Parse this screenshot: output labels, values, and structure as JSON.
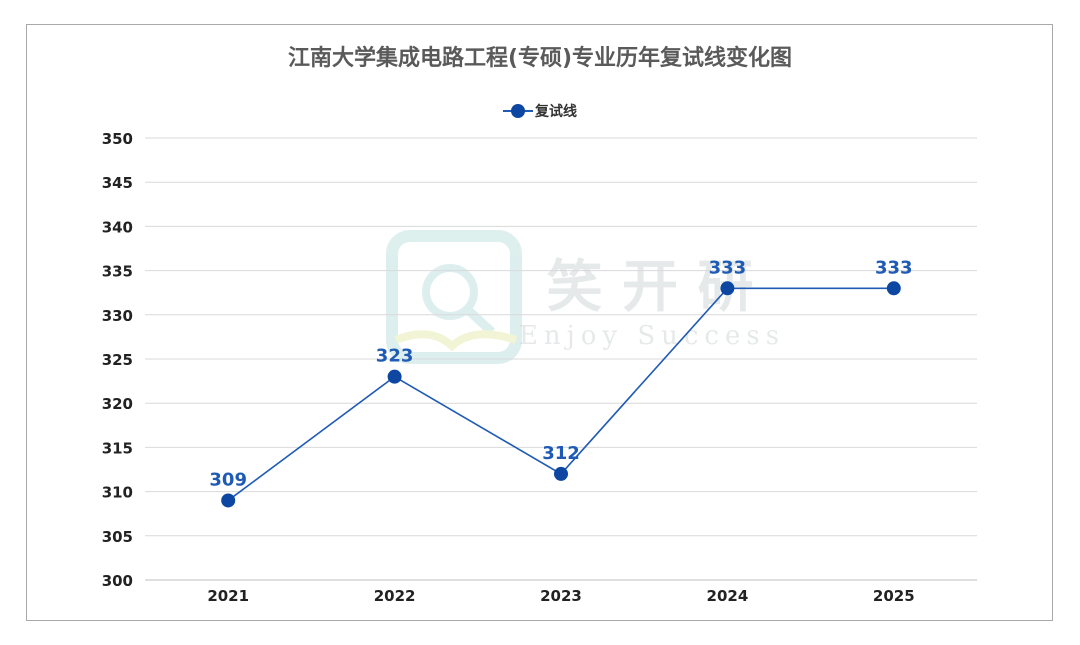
{
  "chart_data": {
    "type": "line",
    "title": "江南大学集成电路工程(专硕)专业历年复试线变化图",
    "categories": [
      "2021",
      "2022",
      "2023",
      "2024",
      "2025"
    ],
    "series": [
      {
        "name": "复试线",
        "values": [
          309,
          323,
          312,
          333,
          333
        ]
      }
    ],
    "ylim": [
      300,
      350
    ],
    "yticks": [
      300,
      305,
      310,
      315,
      320,
      325,
      330,
      335,
      340,
      345,
      350
    ],
    "grid": true,
    "legend": "top-center",
    "data_labels": true
  },
  "colors": {
    "line": "#1f5bb5",
    "marker": "#0d47a1",
    "label": "#1f5bb5",
    "grid": "#d9d9d9"
  },
  "watermark": {
    "cn": "笑 开 研",
    "en": "Enjoy Success"
  }
}
